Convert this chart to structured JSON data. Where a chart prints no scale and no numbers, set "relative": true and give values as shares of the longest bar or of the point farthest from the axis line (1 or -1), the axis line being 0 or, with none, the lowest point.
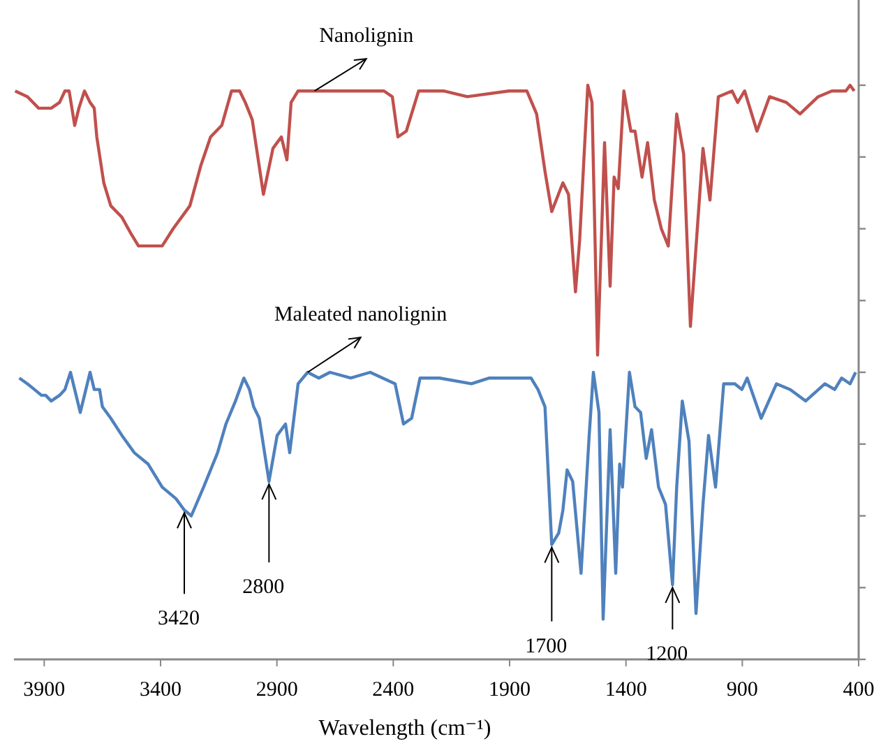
{
  "chart_data": {
    "type": "line",
    "relative": true,
    "xlabel": "Wavelength (cm⁻¹)",
    "xlim": [
      4030,
      400
    ],
    "xticks": [
      3900,
      3400,
      2900,
      2400,
      1900,
      1400,
      900,
      400
    ],
    "grid": false,
    "marker": "none",
    "line_style": "solid",
    "series": [
      {
        "color": "#c0504d",
        "x": [
          4025,
          3972,
          3924,
          3870,
          3834,
          3811,
          3793,
          3769,
          3751,
          3727,
          3703,
          3685,
          3674,
          3644,
          3614,
          3566,
          3525,
          3495,
          3393,
          3346,
          3274,
          3227,
          3185,
          3137,
          3095,
          3060,
          3036,
          3006,
          2958,
          2917,
          2881,
          2857,
          2839,
          2809,
          2738,
          2660,
          2559,
          2440,
          2404,
          2380,
          2344,
          2291,
          2184,
          2082,
          1903,
          1826,
          1784,
          1748,
          1719,
          1671,
          1647,
          1617,
          1599,
          1564,
          1546,
          1522,
          1492,
          1468,
          1451,
          1433,
          1409,
          1379,
          1361,
          1331,
          1307,
          1278,
          1248,
          1218,
          1182,
          1152,
          1123,
          1069,
          1039,
          1003,
          944,
          920,
          890,
          837,
          783,
          711,
          652,
          574,
          515,
          455,
          437,
          419
        ],
        "values": [
          0.99,
          0.98,
          0.96,
          0.96,
          0.97,
          0.99,
          0.99,
          0.93,
          0.96,
          0.99,
          0.97,
          0.96,
          0.91,
          0.83,
          0.79,
          0.77,
          0.74,
          0.72,
          0.72,
          0.75,
          0.79,
          0.86,
          0.91,
          0.93,
          0.99,
          0.99,
          0.97,
          0.94,
          0.81,
          0.89,
          0.91,
          0.87,
          0.97,
          0.99,
          0.99,
          0.99,
          0.99,
          0.99,
          0.98,
          0.91,
          0.92,
          0.99,
          0.99,
          0.98,
          0.99,
          0.99,
          0.95,
          0.85,
          0.78,
          0.83,
          0.81,
          0.64,
          0.73,
          1,
          0.97,
          0.53,
          0.9,
          0.65,
          0.84,
          0.82,
          0.99,
          0.92,
          0.92,
          0.84,
          0.9,
          0.8,
          0.75,
          0.72,
          0.95,
          0.88,
          0.58,
          0.89,
          0.8,
          0.98,
          0.99,
          0.97,
          0.99,
          0.92,
          0.98,
          0.97,
          0.95,
          0.98,
          0.99,
          0.99,
          1,
          0.99
        ]
      },
      {
        "color": "#4f81bd",
        "x": [
          4007,
          3972,
          3942,
          3912,
          3894,
          3870,
          3834,
          3811,
          3787,
          3775,
          3745,
          3727,
          3703,
          3685,
          3662,
          3650,
          3614,
          3566,
          3513,
          3453,
          3393,
          3334,
          3298,
          3268,
          3215,
          3155,
          3119,
          3078,
          3042,
          3018,
          3000,
          2976,
          2934,
          2899,
          2863,
          2845,
          2809,
          2768,
          2720,
          2672,
          2583,
          2499,
          2392,
          2356,
          2321,
          2285,
          2201,
          2064,
          1987,
          1874,
          1808,
          1778,
          1748,
          1719,
          1689,
          1671,
          1653,
          1629,
          1593,
          1558,
          1540,
          1516,
          1498,
          1468,
          1444,
          1427,
          1415,
          1385,
          1361,
          1337,
          1313,
          1290,
          1260,
          1230,
          1200,
          1182,
          1158,
          1129,
          1099,
          1069,
          1045,
          1015,
          980,
          932,
          902,
          879,
          819,
          753,
          694,
          628,
          545,
          503,
          473,
          437,
          413
        ],
        "values": [
          0.49,
          0.48,
          0.47,
          0.46,
          0.46,
          0.45,
          0.46,
          0.47,
          0.5,
          0.48,
          0.43,
          0.46,
          0.5,
          0.47,
          0.47,
          0.44,
          0.42,
          0.39,
          0.36,
          0.34,
          0.3,
          0.28,
          0.26,
          0.25,
          0.3,
          0.36,
          0.41,
          0.45,
          0.49,
          0.47,
          0.44,
          0.42,
          0.31,
          0.39,
          0.41,
          0.36,
          0.48,
          0.5,
          0.49,
          0.5,
          0.49,
          0.5,
          0.48,
          0.41,
          0.42,
          0.49,
          0.49,
          0.48,
          0.49,
          0.49,
          0.49,
          0.47,
          0.44,
          0.2,
          0.22,
          0.26,
          0.33,
          0.31,
          0.15,
          0.39,
          0.5,
          0.43,
          0.07,
          0.4,
          0.15,
          0.34,
          0.3,
          0.5,
          0.44,
          0.43,
          0.35,
          0.4,
          0.3,
          0.27,
          0.13,
          0.3,
          0.45,
          0.38,
          0.08,
          0.27,
          0.39,
          0.3,
          0.48,
          0.48,
          0.47,
          0.49,
          0.42,
          0.48,
          0.47,
          0.45,
          0.48,
          0.47,
          0.49,
          0.48,
          0.5
        ]
      }
    ],
    "annotations": [
      {
        "text": "Nanolignin",
        "x": 2738,
        "y": 0.99
      },
      {
        "text": "Maleated nanolignin",
        "x": 2768,
        "y": 0.5
      },
      {
        "text": "3420",
        "x": 3298,
        "y": 0.26
      },
      {
        "text": "2800",
        "x": 2934,
        "y": 0.31
      },
      {
        "text": "1700",
        "x": 1719,
        "y": 0.2
      },
      {
        "text": "1200",
        "x": 1200,
        "y": 0.13
      }
    ]
  }
}
